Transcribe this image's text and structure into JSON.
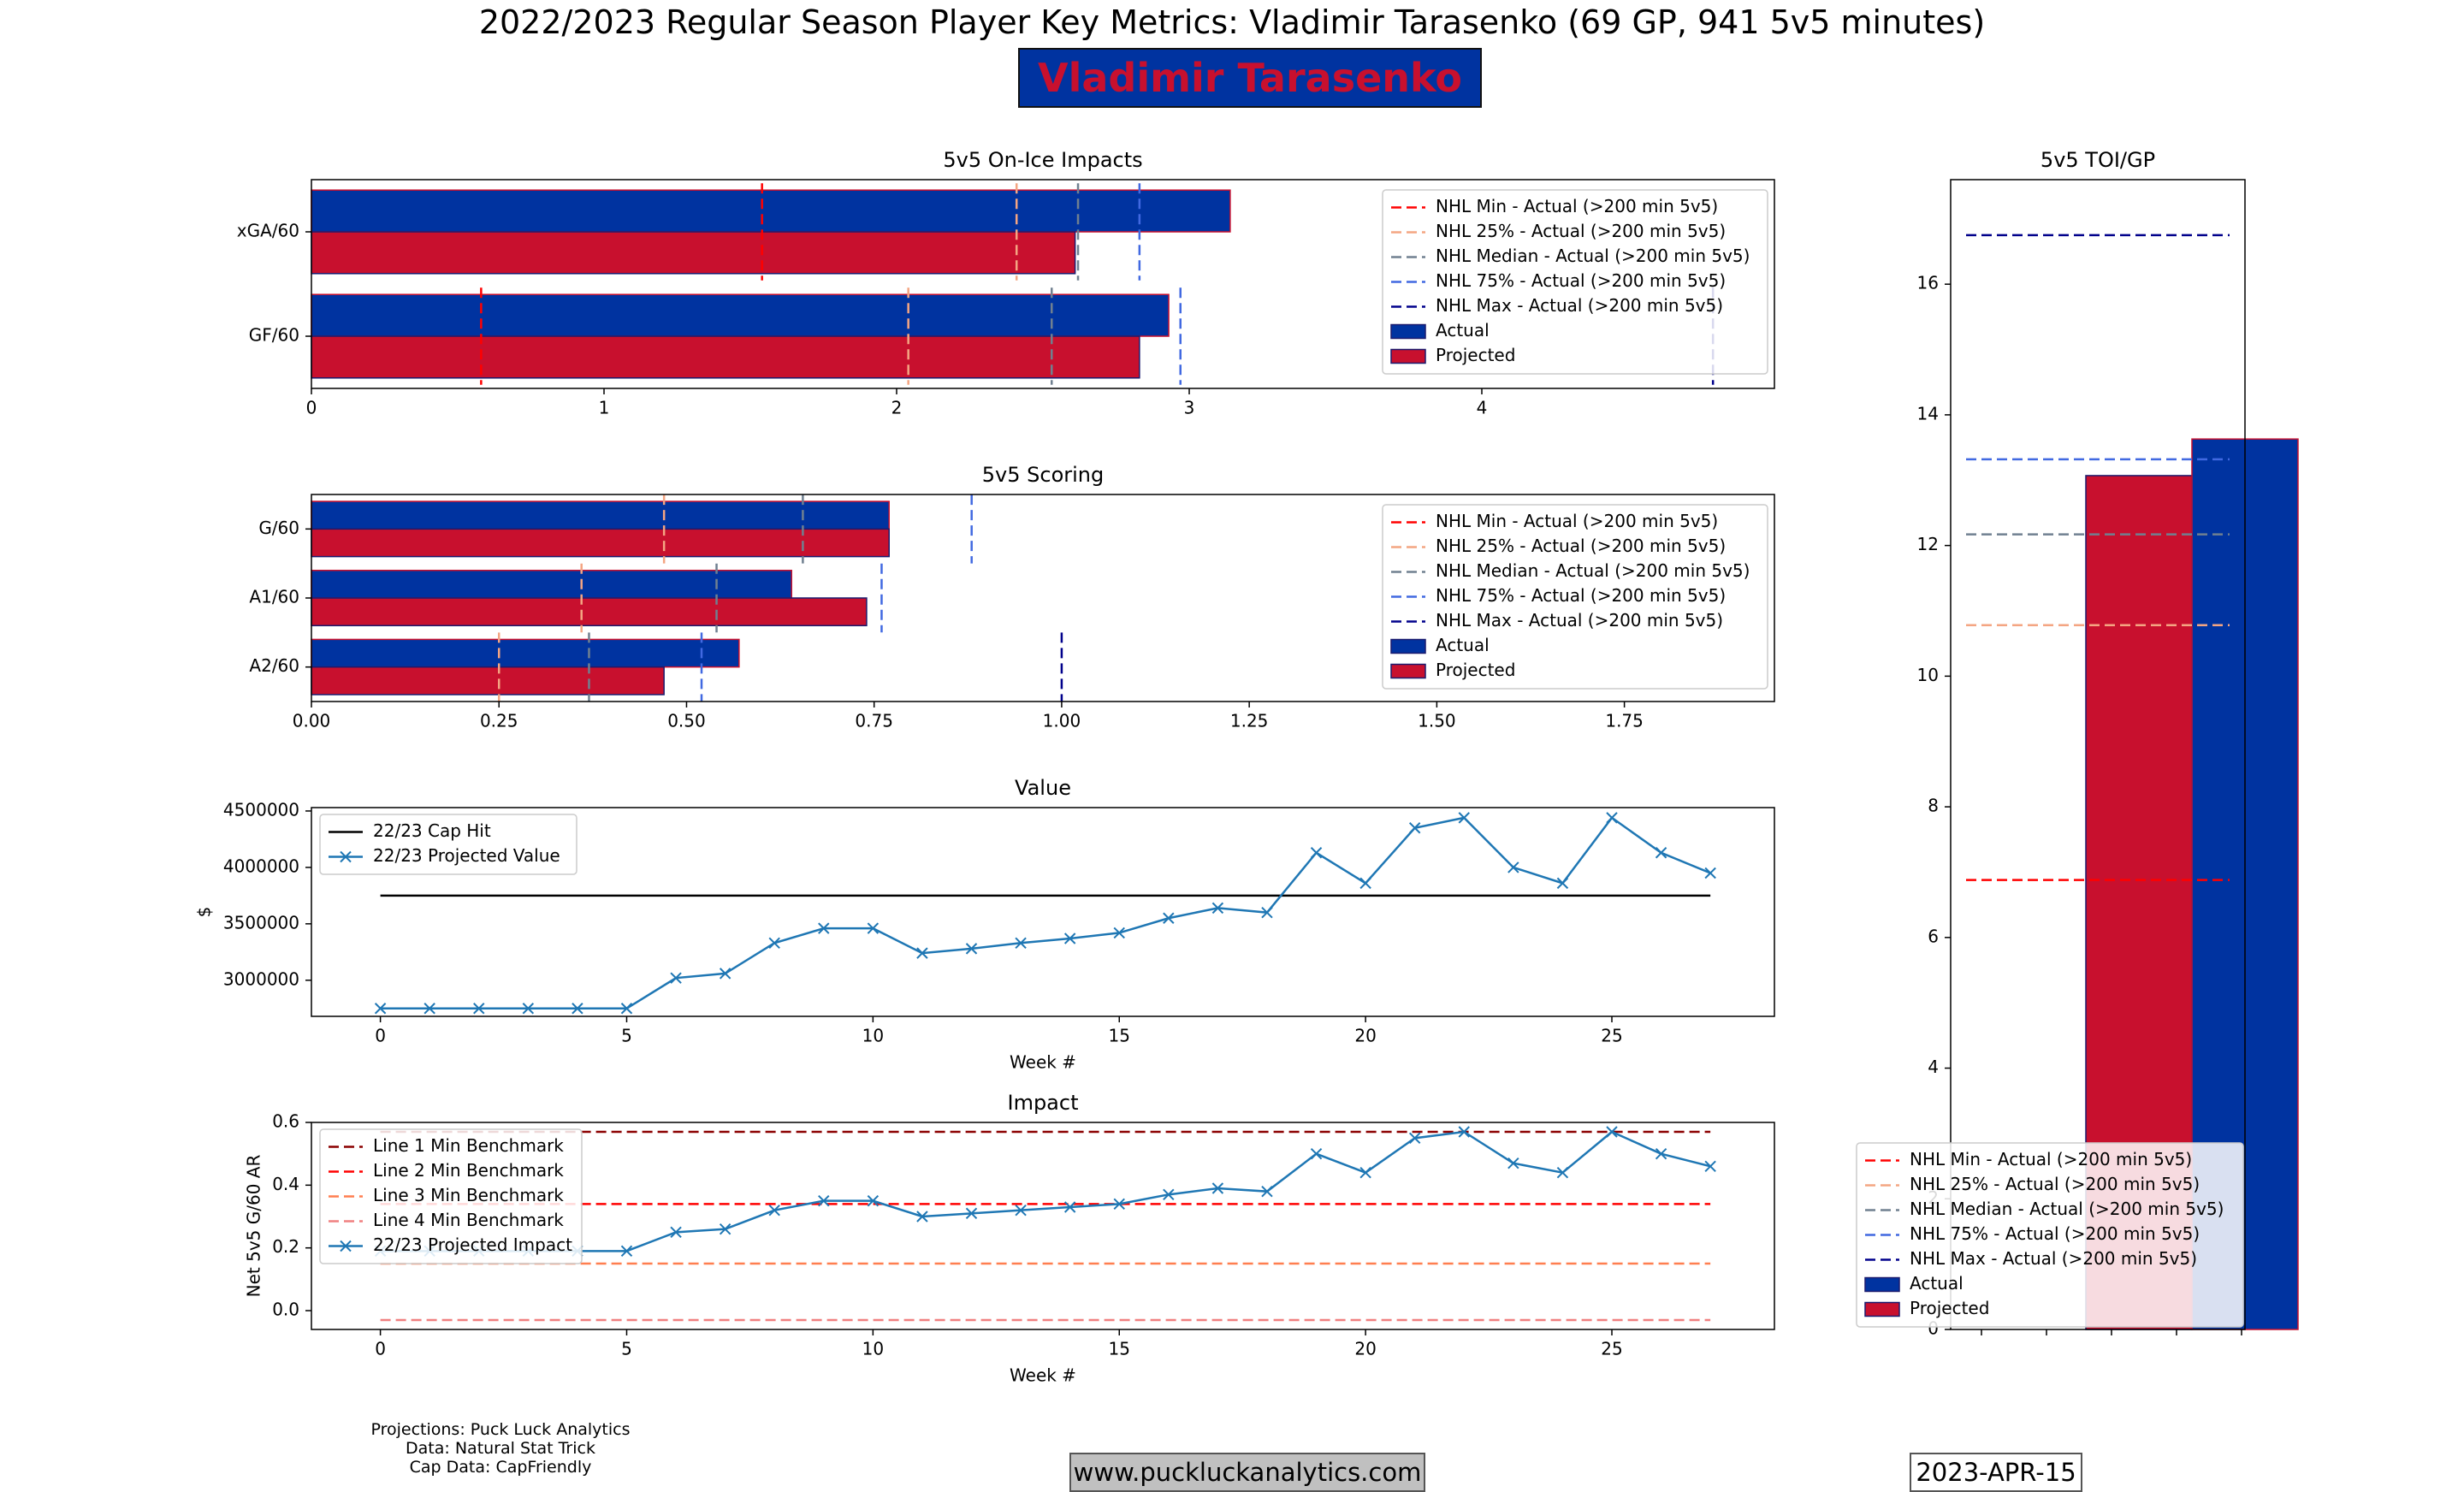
{
  "header": {
    "title": "2022/2023 Regular Season Player Key Metrics: Vladimir Tarasenko (69 GP, 941 5v5 minutes)",
    "player_name": "Vladimir Tarasenko"
  },
  "footer": {
    "credits": [
      "Projections: Puck Luck Analytics",
      "Data: Natural Stat Trick",
      "Cap Data: CapFriendly"
    ],
    "website": "www.puckluckanalytics.com",
    "date": "2023-APR-15"
  },
  "colors": {
    "actual": "#0033a0",
    "projected": "#c8102e",
    "nhl_min": "#ff0000",
    "nhl_25": "#f4a582",
    "nhl_median": "#708090",
    "nhl_75": "#4169e1",
    "nhl_max": "#00008b",
    "line1": "#8b0000",
    "line2": "#ff0000",
    "line3": "#ff7f50",
    "line4": "#f08080",
    "series_blue": "#1f77b4",
    "cap_hit": "#000000"
  },
  "legend_labels": {
    "nhl_min": "NHL Min - Actual (>200 min 5v5)",
    "nhl_25": "NHL 25% - Actual (>200 min 5v5)",
    "nhl_median": "NHL Median - Actual (>200 min 5v5)",
    "nhl_75": "NHL 75% - Actual (>200 min 5v5)",
    "nhl_max": "NHL Max - Actual (>200 min 5v5)",
    "actual": "Actual",
    "projected": "Projected"
  },
  "chart_data": [
    {
      "id": "impacts",
      "type": "bar",
      "orientation": "horizontal",
      "title": "5v5 On-Ice Impacts",
      "categories": [
        "xGA/60",
        "GF/60"
      ],
      "series": [
        {
          "name": "Actual",
          "values": [
            3.14,
            2.93
          ]
        },
        {
          "name": "Projected",
          "values": [
            2.61,
            2.83
          ]
        }
      ],
      "benchmarks": [
        {
          "key": "nhl_min",
          "values": [
            1.54,
            0.58
          ]
        },
        {
          "key": "nhl_25",
          "values": [
            2.41,
            2.04
          ]
        },
        {
          "key": "nhl_median",
          "values": [
            2.62,
            2.53
          ]
        },
        {
          "key": "nhl_75",
          "values": [
            2.83,
            2.97
          ]
        },
        {
          "key": "nhl_max",
          "values": [
            null,
            4.79
          ]
        }
      ],
      "xlim": [
        0,
        5.0
      ],
      "xticks": [
        0,
        1,
        2,
        3,
        4
      ],
      "grid": false,
      "legend": "upper right"
    },
    {
      "id": "scoring",
      "type": "bar",
      "orientation": "horizontal",
      "title": "5v5 Scoring",
      "categories": [
        "G/60",
        "A1/60",
        "A2/60"
      ],
      "series": [
        {
          "name": "Actual",
          "values": [
            0.77,
            0.64,
            0.57
          ]
        },
        {
          "name": "Projected",
          "values": [
            0.77,
            0.74,
            0.47
          ]
        }
      ],
      "benchmarks": [
        {
          "key": "nhl_min",
          "values": [
            null,
            null,
            null
          ]
        },
        {
          "key": "nhl_25",
          "values": [
            0.47,
            0.36,
            0.25
          ]
        },
        {
          "key": "nhl_median",
          "values": [
            0.655,
            0.54,
            0.37
          ]
        },
        {
          "key": "nhl_75",
          "values": [
            0.88,
            0.76,
            0.52
          ]
        },
        {
          "key": "nhl_max",
          "values": [
            null,
            null,
            1.0
          ]
        }
      ],
      "xlim": [
        0,
        1.95
      ],
      "xticks": [
        "0.00",
        "0.25",
        "0.50",
        "0.75",
        "1.00",
        "1.25",
        "1.50",
        "1.75"
      ],
      "grid": false,
      "legend": "upper right"
    },
    {
      "id": "value",
      "type": "line",
      "title": "Value",
      "xlabel": "Week #",
      "ylabel": "$",
      "x": [
        0,
        1,
        2,
        3,
        4,
        5,
        6,
        7,
        8,
        9,
        10,
        11,
        12,
        13,
        14,
        15,
        16,
        17,
        18,
        19,
        20,
        21,
        22,
        23,
        24,
        25,
        26,
        27
      ],
      "series": [
        {
          "name": "22/23 Cap Hit",
          "values": [
            3750000,
            3750000,
            3750000,
            3750000,
            3750000,
            3750000,
            3750000,
            3750000,
            3750000,
            3750000,
            3750000,
            3750000,
            3750000,
            3750000,
            3750000,
            3750000,
            3750000,
            3750000,
            3750000,
            3750000,
            3750000,
            3750000,
            3750000,
            3750000,
            3750000,
            3750000,
            3750000,
            3750000
          ]
        },
        {
          "name": "22/23 Projected Value",
          "values": [
            2750000,
            2750000,
            2750000,
            2750000,
            2750000,
            2750000,
            3020000,
            3060000,
            3330000,
            3460000,
            3460000,
            3240000,
            3280000,
            3330000,
            3370000,
            3420000,
            3550000,
            3640000,
            3600000,
            4130000,
            3860000,
            4350000,
            4440000,
            4000000,
            3860000,
            4440000,
            4130000,
            3950000
          ]
        }
      ],
      "xlim": [
        -1.4,
        28.3
      ],
      "ylim": [
        2680000,
        4530000
      ],
      "xticks": [
        0,
        5,
        10,
        15,
        20,
        25
      ],
      "yticks": [
        "3000000",
        "3500000",
        "4000000",
        "4500000"
      ],
      "grid": false,
      "legend": "upper left"
    },
    {
      "id": "impact",
      "type": "line",
      "title": "Impact",
      "xlabel": "Week #",
      "ylabel": "Net 5v5 G/60 AR",
      "x": [
        0,
        1,
        2,
        3,
        4,
        5,
        6,
        7,
        8,
        9,
        10,
        11,
        12,
        13,
        14,
        15,
        16,
        17,
        18,
        19,
        20,
        21,
        22,
        23,
        24,
        25,
        26,
        27
      ],
      "series": [
        {
          "name": "Line 1 Min Benchmark",
          "values": [
            0.57,
            0.57,
            0.57,
            0.57,
            0.57,
            0.57,
            0.57,
            0.57,
            0.57,
            0.57,
            0.57,
            0.57,
            0.57,
            0.57,
            0.57,
            0.57,
            0.57,
            0.57,
            0.57,
            0.57,
            0.57,
            0.57,
            0.57,
            0.57,
            0.57,
            0.57,
            0.57,
            0.57
          ]
        },
        {
          "name": "Line 2 Min Benchmark",
          "values": [
            0.34,
            0.34,
            0.34,
            0.34,
            0.34,
            0.34,
            0.34,
            0.34,
            0.34,
            0.34,
            0.34,
            0.34,
            0.34,
            0.34,
            0.34,
            0.34,
            0.34,
            0.34,
            0.34,
            0.34,
            0.34,
            0.34,
            0.34,
            0.34,
            0.34,
            0.34,
            0.34,
            0.34
          ]
        },
        {
          "name": "Line 3 Min Benchmark",
          "values": [
            0.15,
            0.15,
            0.15,
            0.15,
            0.15,
            0.15,
            0.15,
            0.15,
            0.15,
            0.15,
            0.15,
            0.15,
            0.15,
            0.15,
            0.15,
            0.15,
            0.15,
            0.15,
            0.15,
            0.15,
            0.15,
            0.15,
            0.15,
            0.15,
            0.15,
            0.15,
            0.15,
            0.15
          ]
        },
        {
          "name": "Line 4 Min Benchmark",
          "values": [
            -0.03,
            -0.03,
            -0.03,
            -0.03,
            -0.03,
            -0.03,
            -0.03,
            -0.03,
            -0.03,
            -0.03,
            -0.03,
            -0.03,
            -0.03,
            -0.03,
            -0.03,
            -0.03,
            -0.03,
            -0.03,
            -0.03,
            -0.03,
            -0.03,
            -0.03,
            -0.03,
            -0.03,
            -0.03,
            -0.03,
            -0.03,
            -0.03
          ]
        },
        {
          "name": "22/23 Projected Impact",
          "values": [
            0.19,
            0.19,
            0.19,
            0.19,
            0.19,
            0.19,
            0.25,
            0.26,
            0.32,
            0.35,
            0.35,
            0.3,
            0.31,
            0.32,
            0.33,
            0.34,
            0.37,
            0.39,
            0.38,
            0.5,
            0.44,
            0.55,
            0.57,
            0.47,
            0.44,
            0.57,
            0.5,
            0.46
          ]
        }
      ],
      "xlim": [
        -1.4,
        28.3
      ],
      "ylim": [
        -0.06,
        0.6
      ],
      "xticks": [
        0,
        5,
        10,
        15,
        20,
        25
      ],
      "yticks": [
        "0.0",
        "0.2",
        "0.4",
        "0.6"
      ],
      "grid": false,
      "legend": "upper left"
    },
    {
      "id": "toi",
      "type": "bar",
      "title": "5v5 TOI/GP",
      "series": [
        {
          "name": "Projected",
          "values": [
            13.07
          ]
        },
        {
          "name": "Actual",
          "values": [
            13.63
          ]
        }
      ],
      "benchmarks": [
        {
          "key": "nhl_min",
          "value": 6.88
        },
        {
          "key": "nhl_25",
          "value": 10.78
        },
        {
          "key": "nhl_median",
          "value": 12.17
        },
        {
          "key": "nhl_75",
          "value": 13.32
        },
        {
          "key": "nhl_max",
          "value": 16.75
        }
      ],
      "ylim": [
        0,
        17.6
      ],
      "yticks": [
        0,
        2,
        4,
        6,
        8,
        10,
        12,
        14,
        16
      ],
      "grid": false,
      "legend": "lower center"
    }
  ]
}
